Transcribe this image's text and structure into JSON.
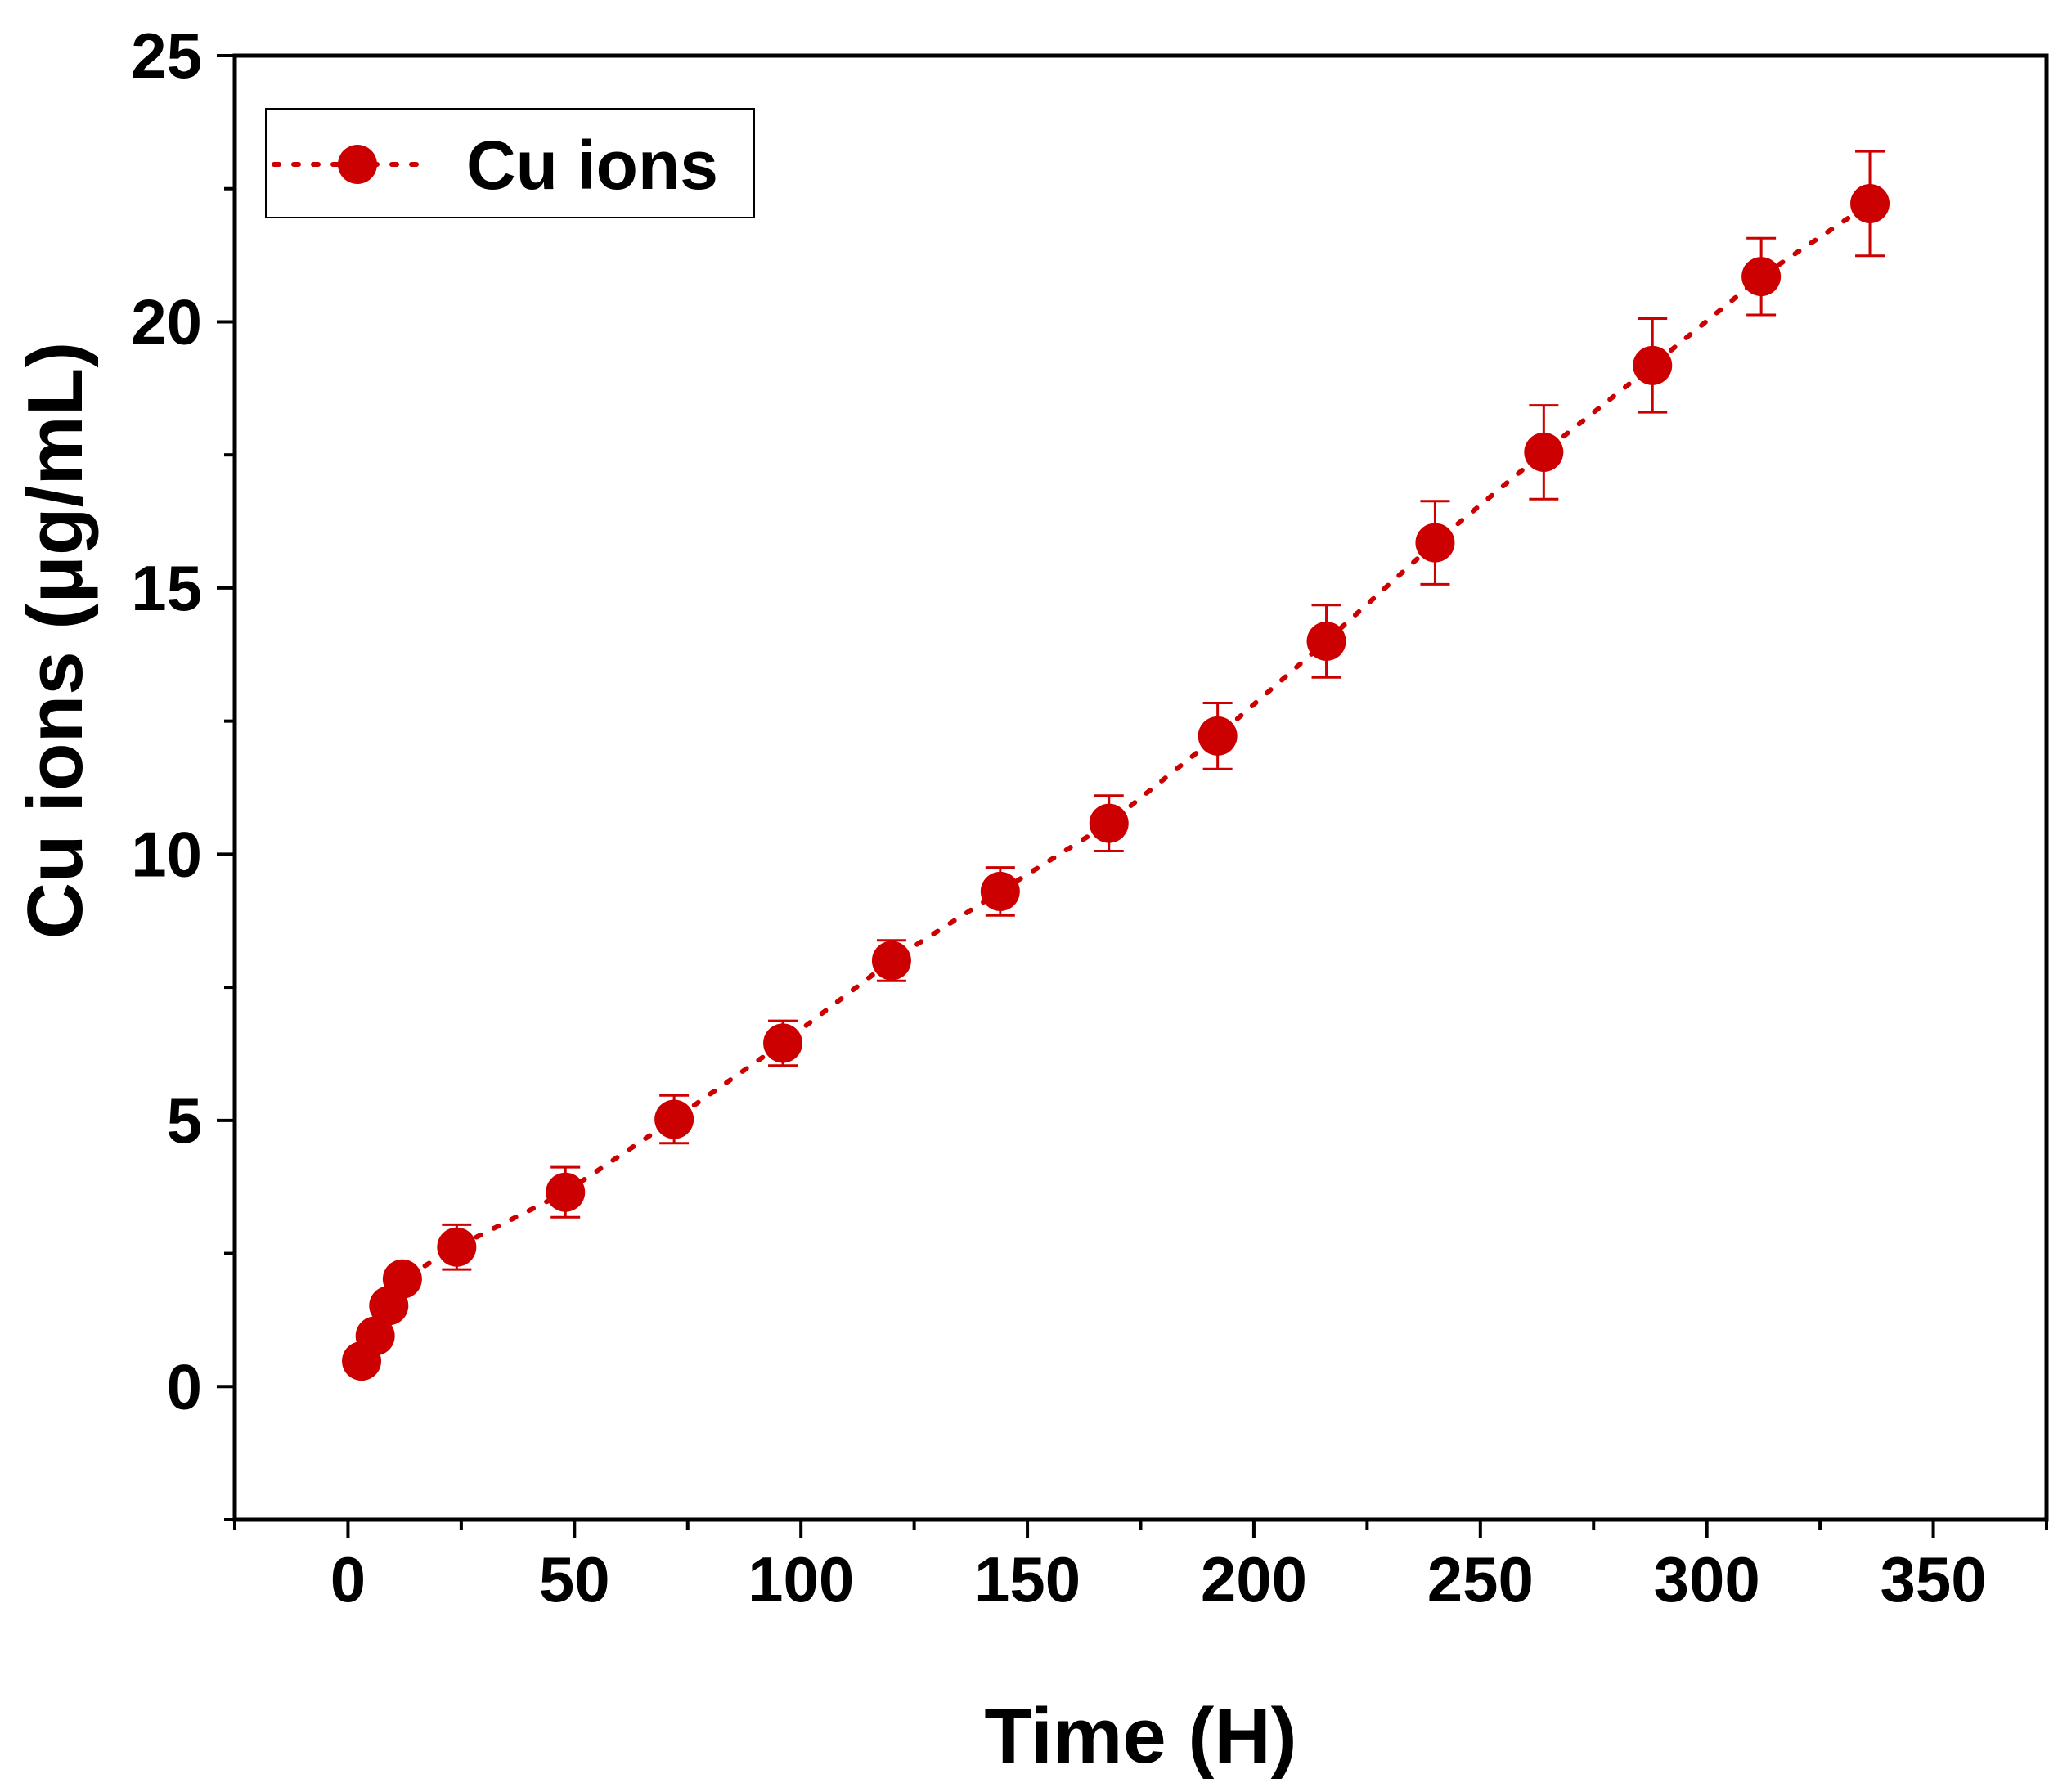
{
  "chart_data": {
    "type": "scatter",
    "xlabel": "Time (H)",
    "ylabel": "Cu ions (μg/mL)",
    "xlim": [
      -25,
      375
    ],
    "ylim": [
      -2.5,
      25
    ],
    "x_ticks": [
      0,
      50,
      100,
      150,
      200,
      250,
      300,
      350
    ],
    "y_ticks": [
      0,
      5,
      10,
      15,
      20,
      25
    ],
    "legend": {
      "position": "top-left",
      "entries": [
        "Cu ions"
      ]
    },
    "grid": false,
    "series": [
      {
        "name": "Cu ions",
        "color": "#cc0000",
        "line_style": "dotted",
        "points": [
          {
            "x": 3,
            "y": 0.48,
            "err": 0.1
          },
          {
            "x": 6,
            "y": 0.95,
            "err": 0.1
          },
          {
            "x": 9,
            "y": 1.52,
            "err": 0.1
          },
          {
            "x": 12,
            "y": 2.02,
            "err": 0.1
          },
          {
            "x": 24,
            "y": 2.62,
            "err": 0.42
          },
          {
            "x": 48,
            "y": 3.65,
            "err": 0.47
          },
          {
            "x": 72,
            "y": 5.02,
            "err": 0.45
          },
          {
            "x": 96,
            "y": 6.45,
            "err": 0.42
          },
          {
            "x": 120,
            "y": 8.0,
            "err": 0.38
          },
          {
            "x": 144,
            "y": 9.3,
            "err": 0.45
          },
          {
            "x": 168,
            "y": 10.58,
            "err": 0.52
          },
          {
            "x": 192,
            "y": 12.22,
            "err": 0.62
          },
          {
            "x": 216,
            "y": 14.0,
            "err": 0.68
          },
          {
            "x": 240,
            "y": 15.85,
            "err": 0.78
          },
          {
            "x": 264,
            "y": 17.55,
            "err": 0.88
          },
          {
            "x": 288,
            "y": 19.18,
            "err": 0.88
          },
          {
            "x": 312,
            "y": 20.85,
            "err": 0.72
          },
          {
            "x": 336,
            "y": 22.22,
            "err": 0.98
          }
        ]
      }
    ]
  }
}
